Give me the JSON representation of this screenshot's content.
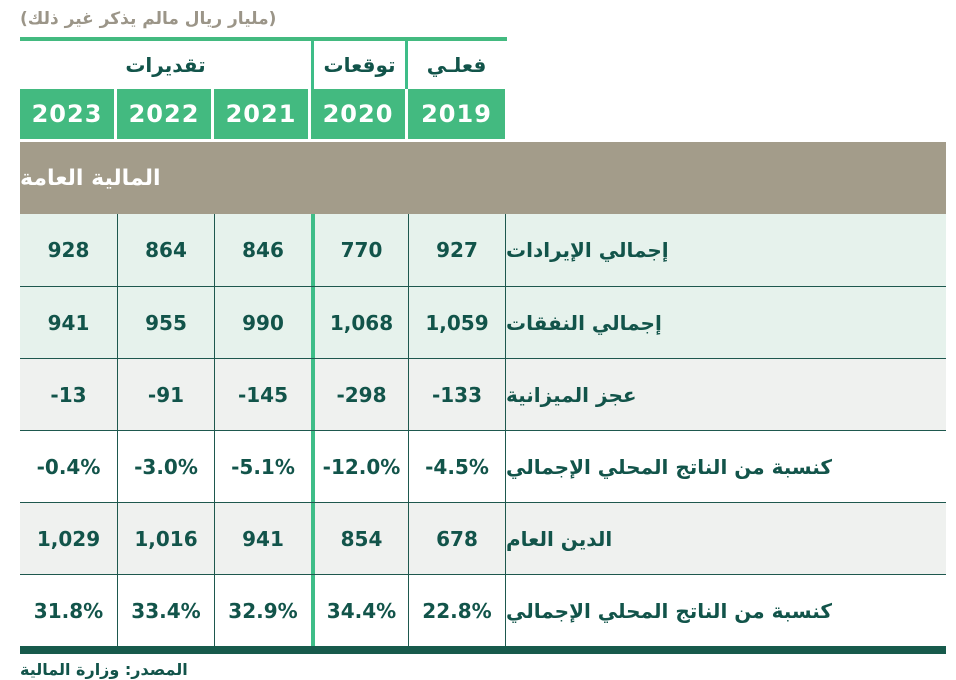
{
  "note": "(مليار ريال مالم يذكر غير ذلك)",
  "header": {
    "groups": [
      {
        "label": "تقديرات",
        "span": 3
      },
      {
        "label": "توقعات",
        "span": 1
      },
      {
        "label": "فعلـي",
        "span": 1
      }
    ],
    "years": [
      "2023",
      "2022",
      "2021",
      "2020",
      "2019"
    ]
  },
  "section_title": "المالية العامة",
  "chart_data": {
    "type": "table",
    "title": "المالية العامة",
    "unit_note": "(مليار ريال مالم يذكر غير ذلك)",
    "columns": [
      "2023",
      "2022",
      "2021",
      "2020",
      "2019"
    ],
    "column_groups": {
      "2023": "تقديرات",
      "2022": "تقديرات",
      "2021": "تقديرات",
      "2020": "توقعات",
      "2019": "فعلي"
    },
    "rows": [
      {
        "label": "إجمالي الإيرادات",
        "values": [
          "928",
          "864",
          "846",
          "770",
          "927"
        ]
      },
      {
        "label": "إجمالي النفقات",
        "values": [
          "941",
          "955",
          "990",
          "1,068",
          "1,059"
        ]
      },
      {
        "label": "عجز الميزانية",
        "values": [
          "-13",
          "-91",
          "-145",
          "-298",
          "-133"
        ]
      },
      {
        "label": "كنسبة من الناتج المحلي الإجمالي",
        "values": [
          "-0.4%",
          "-3.0%",
          "-5.1%",
          "-12.0%",
          "-4.5%"
        ]
      },
      {
        "label": "الدين العام",
        "values": [
          "1,029",
          "1,016",
          "941",
          "854",
          "678"
        ]
      },
      {
        "label": "كنسبة من الناتج المحلي الإجمالي",
        "values": [
          "31.8%",
          "33.4%",
          "32.9%",
          "34.4%",
          "22.8%"
        ]
      }
    ]
  },
  "source": "المصدر: وزارة المالية",
  "colors": {
    "header_green": "#43ba80",
    "forecast_divider_green": "#3ebd88",
    "band_taupe": "#a39c8a",
    "note_taupe": "#9b9588",
    "text_dark_teal": "#12544a",
    "row_separator_teal": "#1e584e",
    "row_bg_green": "#e6f2ec",
    "row_bg_gray": "#eff1ef",
    "row_bg_white": "#ffffff",
    "bottom_border_teal": "#175a4c"
  }
}
